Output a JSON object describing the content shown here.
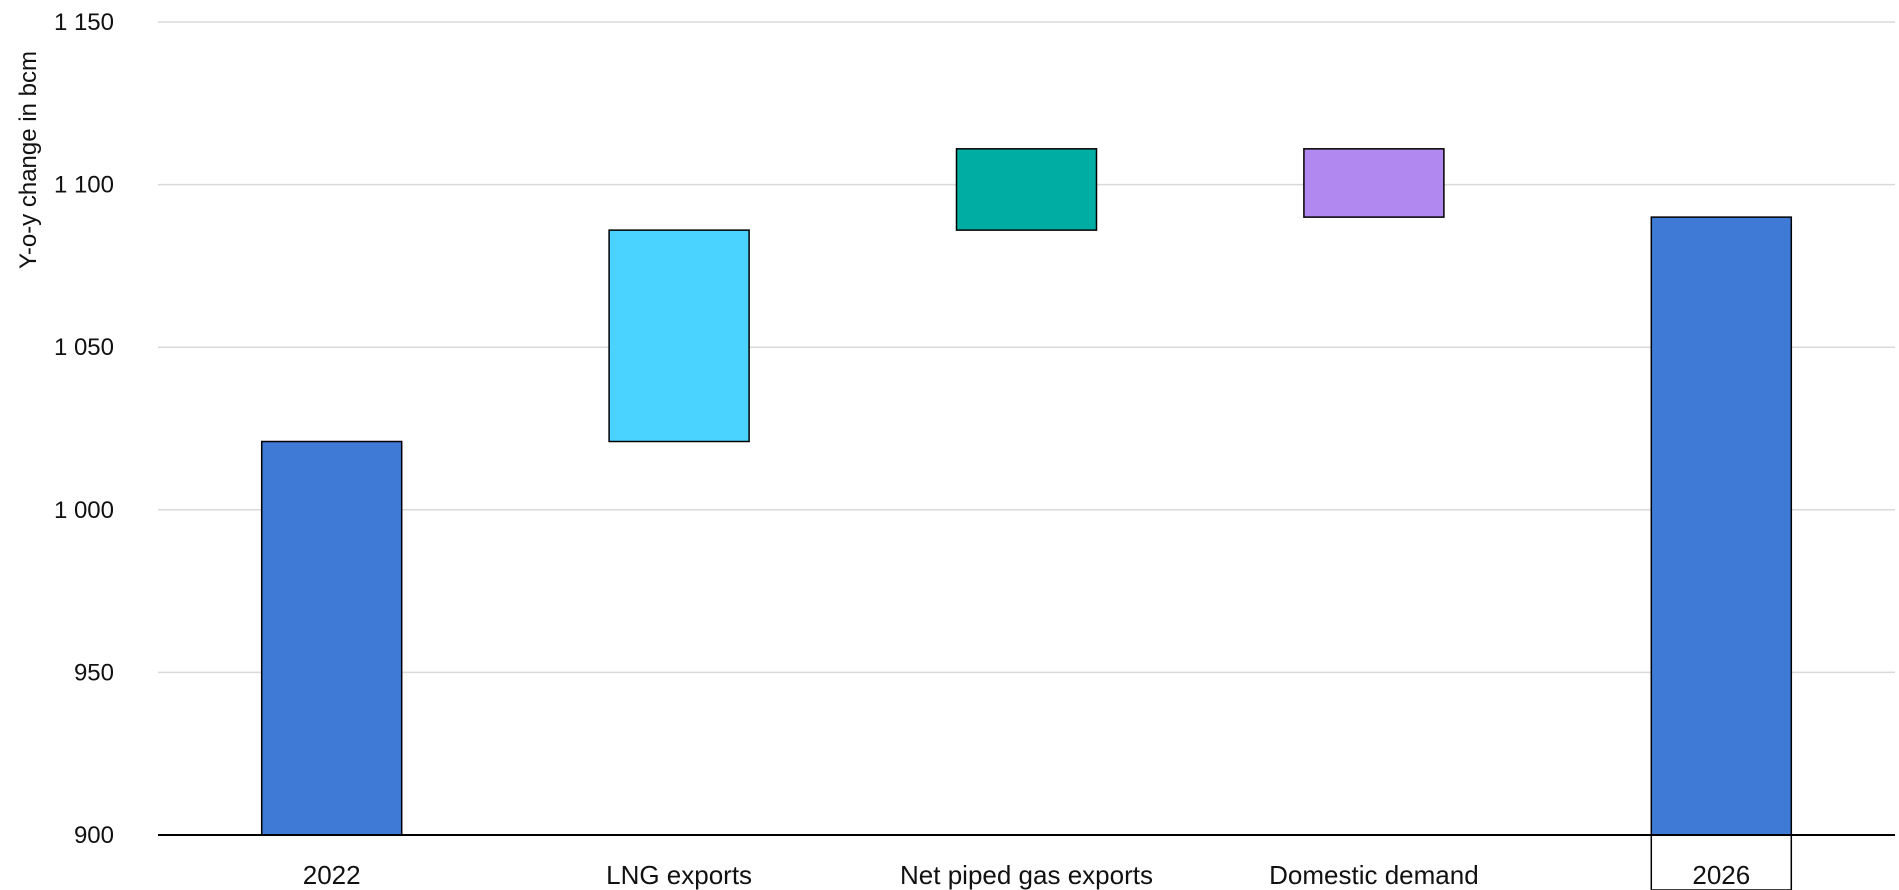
{
  "chart_data": {
    "type": "bar",
    "subtype": "waterfall",
    "title": "",
    "xlabel": "",
    "ylabel": "Y-o-y change in bcm",
    "ylim": [
      900,
      1150
    ],
    "yticks": [
      900,
      950,
      1000,
      1050,
      1100,
      1150
    ],
    "ytick_labels": [
      "900",
      "950",
      "1 000",
      "1 050",
      "1 100",
      "1 150"
    ],
    "grid": true,
    "categories": [
      "2022",
      "LNG exports",
      "Net piped gas exports",
      "Domestic demand",
      "2026"
    ],
    "bars": [
      {
        "category": "2022",
        "kind": "total",
        "base": 900,
        "value": 1021,
        "color": "#3E7AD6"
      },
      {
        "category": "LNG exports",
        "kind": "change",
        "base": 1021,
        "value": 1086,
        "color": "#4AD3FF"
      },
      {
        "category": "Net piped gas exports",
        "kind": "change",
        "base": 1086,
        "value": 1111,
        "color": "#00ADA2"
      },
      {
        "category": "Domestic demand",
        "kind": "change",
        "base": 1090,
        "value": 1111,
        "color": "#B088EF"
      },
      {
        "category": "2026",
        "kind": "total",
        "base": 900,
        "value": 1090,
        "color": "#3E7AD6"
      }
    ]
  }
}
